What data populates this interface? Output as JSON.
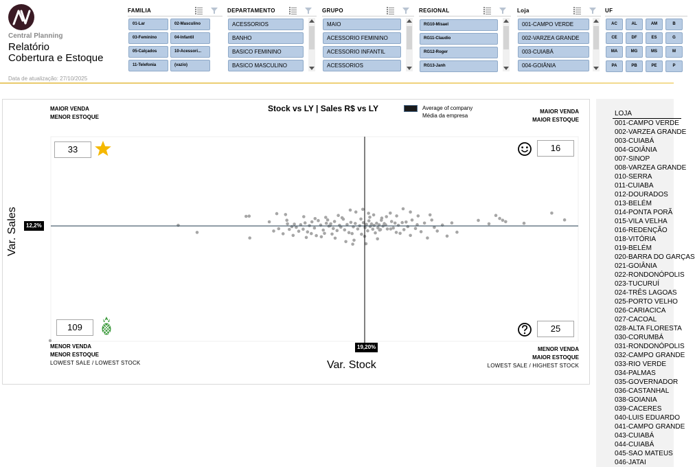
{
  "header": {
    "brand": "Central Planning",
    "title_line1": "Relatório",
    "title_line2": "Cobertura e Estoque",
    "updated": "Data de atualização: 27/10/2025"
  },
  "slicers": {
    "familia": {
      "title": "FAMILIA",
      "items": [
        "01-Lar",
        "02-Masculino",
        "03-Feminino",
        "04-Infantil",
        "05-Calçados",
        "10-Acessori...",
        "11-Telefonia",
        "(vazio)"
      ]
    },
    "departamento": {
      "title": "DEPARTAMENTO",
      "items": [
        "ACESSORIOS",
        "BANHO",
        "BASICO FEMININO",
        "BASICO MASCULINO"
      ]
    },
    "grupo": {
      "title": "GRUPO",
      "items": [
        "MAIO",
        "ACESSORIO FEMININO",
        "ACESSORIO INFANTIL",
        "ACESSORIOS"
      ]
    },
    "regional": {
      "title": "REGIONAL",
      "items": [
        "RG10-Misael",
        "RG11-Claudio",
        "RG12-Roger",
        "RG13-Janh"
      ]
    },
    "loja": {
      "title": "Loja",
      "items": [
        "001-CAMPO VERDE",
        "002-VARZEA GRANDE",
        "003-CUIABÁ",
        "004-GOIÂNIA"
      ]
    },
    "uf": {
      "title": "UF",
      "items": [
        "AC",
        "AL",
        "AM",
        "B",
        "CE",
        "DF",
        "ES",
        "G",
        "MA",
        "MG",
        "MS",
        "M",
        "PA",
        "PB",
        "PE",
        "P"
      ]
    }
  },
  "chart": {
    "title": "Stock vs LY | Sales R$ vs LY",
    "legend_line1": "Average of company",
    "legend_line2": "Média da empresa",
    "xlabel": "Var. Stock",
    "ylabel": "Var. Sales",
    "x_avg_label": "19,20%",
    "y_avg_label": "12,2%",
    "quadrants": {
      "top_left": {
        "line1": "MAIOR VENDA",
        "line2": "MENOR ESTOQUE",
        "count": "33",
        "icon": "star-icon"
      },
      "top_right": {
        "line1": "MAIOR VENDA",
        "line2": "MAIOR ESTOQUE",
        "count": "16",
        "icon": "smiley-icon"
      },
      "bottom_left": {
        "line1": "MENOR VENDA",
        "line2": "MENOR ESTOQUE",
        "line3": "LOWEST SALE / LOWEST STOCK",
        "count": "109",
        "icon": "pineapple-icon"
      },
      "bottom_right": {
        "line1": "MENOR VENDA",
        "line2": "MAIOR ESTOQUE",
        "line3": "LOWEST SALE / HIGHEST STOCK",
        "count": "25",
        "icon": "question-icon"
      }
    },
    "colors": {
      "points": "#a6a6a6",
      "avg_line_x": "#000000",
      "avg_line_y": "#1f3a4d",
      "star": "#f5b800",
      "pineapple": "#3c9a3c"
    }
  },
  "chart_data": {
    "type": "scatter",
    "title": "Stock vs LY | Sales R$ vs LY",
    "xlabel": "Var. Stock",
    "ylabel": "Var. Sales",
    "x_reference": 19.2,
    "y_reference": 12.2,
    "unit": "%",
    "xlim": [
      -100,
      100
    ],
    "ylim": [
      -100,
      100
    ],
    "grid": false,
    "legend": "top",
    "points": [
      [
        -59.4,
        0.8
      ],
      [
        -53.4,
        -5.6
      ],
      [
        -37.8,
        10.8
      ],
      [
        -36.8,
        11.0
      ],
      [
        -36.6,
        -10.4
      ],
      [
        -28.0,
        13.8
      ],
      [
        -25.2,
        12.8
      ],
      [
        -24.6,
        2.4
      ],
      [
        -24.0,
        -3.0
      ],
      [
        -23.2,
        -0.6
      ],
      [
        -22.4,
        2.0
      ],
      [
        -21.8,
        -1.2
      ],
      [
        -21.0,
        -4.6
      ],
      [
        -20.4,
        1.4
      ],
      [
        -19.6,
        -2.8
      ],
      [
        -19.0,
        3.4
      ],
      [
        -18.2,
        -5.2
      ],
      [
        -17.6,
        0.4
      ],
      [
        -16.8,
        4.6
      ],
      [
        -16.0,
        -1.8
      ],
      [
        -15.4,
        -8.4
      ],
      [
        -14.8,
        6.0
      ],
      [
        -14.0,
        1.0
      ],
      [
        -13.2,
        -3.6
      ],
      [
        -12.8,
        -6.4
      ],
      [
        -12.2,
        3.0
      ],
      [
        -11.4,
        -0.2
      ],
      [
        -10.8,
        2.4
      ],
      [
        -10.0,
        -2.2
      ],
      [
        -9.6,
        5.0
      ],
      [
        -8.8,
        -4.0
      ],
      [
        -8.0,
        0.8
      ],
      [
        -7.6,
        -1.0
      ],
      [
        -6.8,
        7.6
      ],
      [
        -6.4,
        -3.4
      ],
      [
        -5.6,
        1.6
      ],
      [
        -5.0,
        -5.8
      ],
      [
        -4.4,
        4.0
      ],
      [
        -3.6,
        -0.8
      ],
      [
        -3.0,
        2.8
      ],
      [
        -2.2,
        -2.6
      ],
      [
        -1.6,
        0.2
      ],
      [
        -1.0,
        -7.2
      ],
      [
        -0.4,
        3.6
      ],
      [
        0.2,
        -1.4
      ],
      [
        0.8,
        1.8
      ],
      [
        1.4,
        -4.2
      ],
      [
        2.0,
        5.8
      ],
      [
        2.6,
        -0.4
      ],
      [
        3.2,
        2.2
      ],
      [
        3.8,
        -2.8
      ],
      [
        4.4,
        0.6
      ],
      [
        5.0,
        -6.0
      ],
      [
        5.6,
        3.0
      ],
      [
        6.2,
        -1.6
      ],
      [
        6.8,
        1.2
      ],
      [
        7.4,
        -3.2
      ],
      [
        8.0,
        8.8
      ],
      [
        8.6,
        -0.2
      ],
      [
        9.2,
        2.6
      ],
      [
        -19.4,
        10.4
      ],
      [
        -12.4,
        9.6
      ],
      [
        -8.4,
        11.8
      ],
      [
        -2.8,
        15.6
      ],
      [
        -0.6,
        18.6
      ],
      [
        -4.6,
        17.8
      ],
      [
        1.8,
        14.2
      ],
      [
        4.2,
        12.4
      ],
      [
        -27.4,
        -2.4
      ],
      [
        -26.0,
        -6.8
      ],
      [
        -24.8,
        6.4
      ],
      [
        -22.8,
        -8.2
      ],
      [
        -18.6,
        -10.0
      ],
      [
        -15.8,
        8.2
      ],
      [
        -13.8,
        -9.4
      ],
      [
        -11.8,
        6.8
      ],
      [
        -9.4,
        -10.6
      ],
      [
        -7.2,
        9.2
      ],
      [
        -3.4,
        -12.4
      ],
      [
        -1.2,
        7.8
      ],
      [
        0.0,
        -9.0
      ],
      [
        2.4,
        9.8
      ],
      [
        6.0,
        -11.2
      ],
      [
        7.8,
        6.4
      ],
      [
        -6.0,
        -13.6
      ],
      [
        -30.4,
        4.6
      ],
      [
        -29.0,
        -4.4
      ],
      [
        -17.0,
        -6.6
      ],
      [
        -10.4,
        -7.0
      ],
      [
        -4.0,
        -6.6
      ],
      [
        0.6,
        -15.4
      ],
      [
        9.8,
        1.2
      ],
      [
        10.6,
        -2.6
      ],
      [
        -3.8,
        -15.8
      ],
      [
        -11.0,
        0.4
      ],
      [
        10.2,
        10.4
      ],
      [
        12.6,
        5.0
      ],
      [
        13.4,
        -1.8
      ],
      [
        14.2,
        3.2
      ],
      [
        14.8,
        -5.6
      ],
      [
        15.8,
        0.8
      ],
      [
        16.6,
        -6.4
      ],
      [
        17.6,
        3.8
      ],
      [
        18.4,
        -3.2
      ],
      [
        19.4,
        4.4
      ],
      [
        20.2,
        -0.6
      ],
      [
        21.4,
        -8.2
      ],
      [
        22.2,
        6.6
      ],
      [
        23.8,
        -2.2
      ],
      [
        24.6,
        1.4
      ],
      [
        26.4,
        -5.0
      ],
      [
        28.0,
        3.2
      ],
      [
        29.4,
        -10.4
      ],
      [
        31.4,
        6.6
      ],
      [
        32.6,
        -1.2
      ],
      [
        34.0,
        -4.4
      ],
      [
        36.4,
        1.0
      ],
      [
        38.6,
        -8.8
      ],
      [
        40.8,
        3.4
      ],
      [
        43.2,
        -5.4
      ],
      [
        12.0,
        14.4
      ],
      [
        15.0,
        11.2
      ],
      [
        18.0,
        19.2
      ],
      [
        21.4,
        15.6
      ],
      [
        25.0,
        11.2
      ],
      [
        30.6,
        12.4
      ],
      [
        12.2,
        -2.6
      ],
      [
        7.0,
        -3.6
      ],
      [
        53.2,
        6.2
      ],
      [
        58.2,
        2.4
      ],
      [
        61.4,
        11.8
      ],
      [
        63.2,
        8.4
      ],
      [
        64.6,
        6.4
      ],
      [
        66.0,
        4.8
      ],
      [
        74.6,
        3.0
      ],
      [
        87.6,
        14.4
      ],
      [
        93.6,
        6.8
      ]
    ]
  },
  "stores": {
    "header": "LOJA",
    "items": [
      "001-CAMPO VERDE",
      "002-VARZEA GRANDE",
      "003-CUIABÁ",
      "004-GOIÂNIA",
      "007-SINOP",
      "008-VARZEA GRANDE",
      "010-SERRA",
      "011-CUIABA",
      "012-DOURADOS",
      "013-BELÉM",
      "014-PONTA PORÃ",
      "015-VILA VELHA",
      "016-REDENÇÃO",
      "018-VITÓRIA",
      "019-BELÉM",
      "020-BARRA DO GARÇAS",
      "021-GOIÂNIA",
      "022-RONDONÓPOLIS",
      "023-TUCURUÍ",
      "024-TRÊS LAGOAS",
      "025-PORTO VELHO",
      "026-CARIACICA",
      "027-CACOAL",
      "028-ALTA FLORESTA",
      "030-CORUMBÁ",
      "031-RONDONÓPOLIS",
      "032-CAMPO GRANDE",
      "033-RIO VERDE",
      "034-PALMAS",
      "035-GOVERNADOR",
      "036-CASTANHAL",
      "038-GOIANIA",
      "039-CACERES",
      "040-LUIS EDUARDO",
      "041-CAMPO GRANDE",
      "043-CUIABÁ",
      "044-CUIABÁ",
      "045-SAO MATEUS",
      "046-JATAI"
    ]
  }
}
